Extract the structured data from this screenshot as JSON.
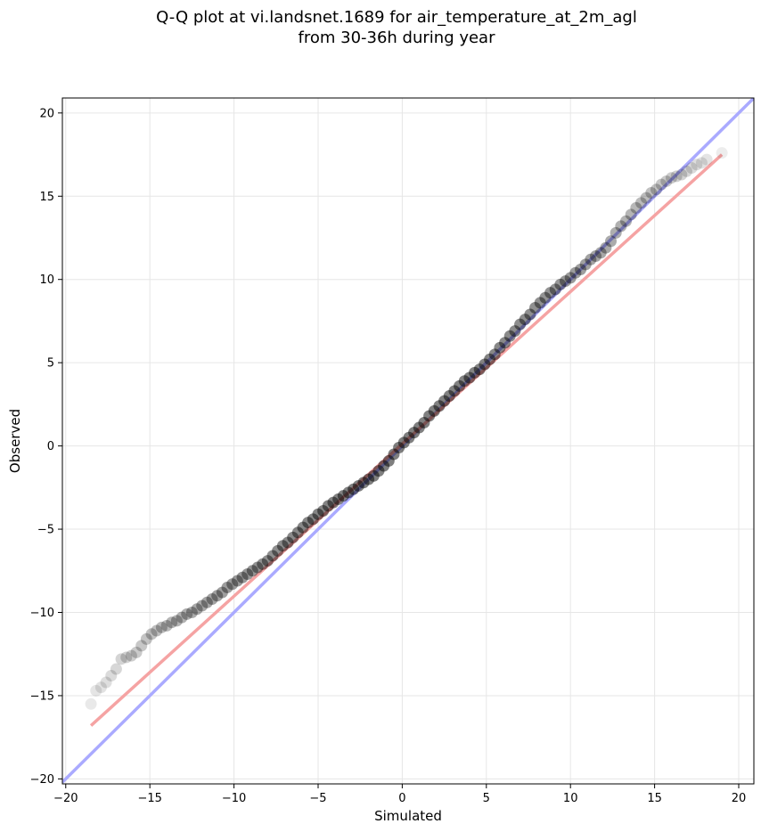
{
  "chart_data": {
    "type": "scatter",
    "title": [
      "Q-Q plot at vi.landsnet.1689 for air_temperature_at_2m_agl",
      "from 30-36h during year"
    ],
    "xlabel": "Simulated",
    "ylabel": "Observed",
    "xlim": [
      -20.2,
      20.9
    ],
    "ylim": [
      -20.3,
      20.9
    ],
    "xticks": [
      -20,
      -15,
      -10,
      -5,
      0,
      5,
      10,
      15,
      20
    ],
    "yticks": [
      -20,
      -15,
      -10,
      -5,
      0,
      5,
      10,
      15,
      20
    ],
    "xtick_labels": [
      "−20",
      "−15",
      "−10",
      "−5",
      "0",
      "5",
      "10",
      "15",
      "20"
    ],
    "ytick_labels": [
      "−20",
      "−15",
      "−10",
      "−5",
      "0",
      "5",
      "10",
      "15",
      "20"
    ],
    "grid": true,
    "lines": [
      {
        "kind": "identity",
        "color": "#aaaaff",
        "x": [
          -20.2,
          20.9
        ],
        "y": [
          -20.2,
          20.9
        ]
      },
      {
        "kind": "fit",
        "color": "#f5a3a3",
        "x": [
          -18.5,
          19.0
        ],
        "y": [
          -16.8,
          17.5
        ]
      }
    ],
    "series": [
      {
        "color": "#000000",
        "x": [
          -18.5,
          -18.2,
          -17.9,
          -17.6,
          -17.3,
          -17.0,
          -16.7,
          -16.4,
          -16.1,
          -15.8,
          -15.5,
          -15.2,
          -14.9,
          -14.6,
          -14.3,
          -14.0,
          -13.7,
          -13.4,
          -13.1,
          -12.8,
          -12.5,
          -12.2,
          -11.9,
          -11.6,
          -11.3,
          -11.0,
          -10.7,
          -10.4,
          -10.1,
          -9.8,
          -9.5,
          -9.2,
          -8.9,
          -8.6,
          -8.3,
          -8.0,
          -7.7,
          -7.4,
          -7.1,
          -6.8,
          -6.5,
          -6.2,
          -5.9,
          -5.6,
          -5.3,
          -5.0,
          -4.7,
          -4.4,
          -4.1,
          -3.8,
          -3.5,
          -3.2,
          -2.9,
          -2.6,
          -2.3,
          -2.0,
          -1.7,
          -1.4,
          -1.1,
          -0.8,
          -0.5,
          -0.2,
          0.1,
          0.4,
          0.7,
          1.0,
          1.3,
          1.6,
          1.9,
          2.2,
          2.5,
          2.8,
          3.1,
          3.4,
          3.7,
          4.0,
          4.3,
          4.6,
          4.9,
          5.2,
          5.5,
          5.8,
          6.1,
          6.4,
          6.7,
          7.0,
          7.3,
          7.6,
          7.9,
          8.2,
          8.5,
          8.8,
          9.1,
          9.4,
          9.7,
          10.0,
          10.3,
          10.6,
          10.9,
          11.2,
          11.5,
          11.8,
          12.1,
          12.4,
          12.7,
          13.0,
          13.3,
          13.6,
          13.9,
          14.2,
          14.5,
          14.8,
          15.1,
          15.4,
          15.7,
          16.0,
          16.3,
          16.6,
          16.9,
          17.2,
          17.5,
          17.8,
          18.1,
          19.0
        ],
        "y": [
          -15.5,
          -14.7,
          -14.5,
          -14.2,
          -13.8,
          -13.4,
          -12.8,
          -12.7,
          -12.6,
          -12.4,
          -12.0,
          -11.6,
          -11.3,
          -11.1,
          -10.9,
          -10.8,
          -10.6,
          -10.5,
          -10.3,
          -10.1,
          -10.0,
          -9.8,
          -9.6,
          -9.4,
          -9.2,
          -9.0,
          -8.8,
          -8.5,
          -8.3,
          -8.1,
          -7.9,
          -7.7,
          -7.5,
          -7.3,
          -7.1,
          -6.9,
          -6.6,
          -6.3,
          -6.0,
          -5.8,
          -5.5,
          -5.2,
          -4.9,
          -4.6,
          -4.4,
          -4.1,
          -3.9,
          -3.6,
          -3.4,
          -3.2,
          -3.0,
          -2.8,
          -2.6,
          -2.4,
          -2.2,
          -2.0,
          -1.8,
          -1.5,
          -1.2,
          -0.9,
          -0.5,
          -0.1,
          0.2,
          0.5,
          0.8,
          1.1,
          1.4,
          1.8,
          2.1,
          2.4,
          2.7,
          3.0,
          3.3,
          3.6,
          3.9,
          4.1,
          4.4,
          4.6,
          4.9,
          5.2,
          5.5,
          5.9,
          6.2,
          6.6,
          6.9,
          7.3,
          7.6,
          7.9,
          8.3,
          8.6,
          8.9,
          9.2,
          9.4,
          9.7,
          9.9,
          10.1,
          10.4,
          10.6,
          10.9,
          11.2,
          11.4,
          11.6,
          11.9,
          12.3,
          12.8,
          13.2,
          13.5,
          13.9,
          14.3,
          14.6,
          14.9,
          15.2,
          15.4,
          15.7,
          15.9,
          16.1,
          16.2,
          16.3,
          16.5,
          16.7,
          16.9,
          17.0,
          17.2,
          17.6
        ]
      }
    ]
  }
}
